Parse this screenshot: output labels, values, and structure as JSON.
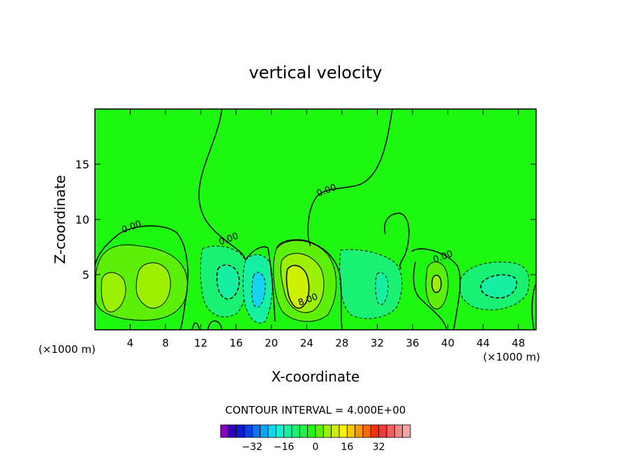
{
  "chart_data": {
    "type": "heatmap",
    "title": "vertical velocity",
    "xlabel": "X-coordinate",
    "ylabel": "Z-coordinate",
    "x_unit_left": "(×1000 m)",
    "x_unit_right": "(×1000 m)",
    "xlim": [
      0,
      50
    ],
    "ylim": [
      0,
      20
    ],
    "x_ticks": [
      4,
      8,
      12,
      16,
      20,
      24,
      28,
      32,
      36,
      40,
      44,
      48
    ],
    "y_ticks": [
      5,
      10,
      15
    ],
    "contour_interval_text": "CONTOUR INTERVAL = 4.000E+00",
    "contour_interval": 4,
    "contour_labels": [
      {
        "text": "0.00",
        "x": 4.2,
        "y": 9.2
      },
      {
        "text": "0.00",
        "x": 15.2,
        "y": 8.1
      },
      {
        "text": "0.00",
        "x": 26.3,
        "y": 12.5
      },
      {
        "text": "0.00",
        "x": 39.5,
        "y": 6.5
      },
      {
        "text": "8.00",
        "x": 24.2,
        "y": 2.6
      }
    ],
    "cells": [
      {
        "x": 3,
        "z": 3.5,
        "value": 8
      },
      {
        "x": 6.5,
        "z": 4,
        "value": 8
      },
      {
        "x": 15,
        "z": 4.5,
        "value": -8
      },
      {
        "x": 18.5,
        "z": 3.5,
        "value": -12
      },
      {
        "x": 23.5,
        "z": 4,
        "value": 16
      },
      {
        "x": 31,
        "z": 4.5,
        "value": -4
      },
      {
        "x": 38.5,
        "z": 4.5,
        "value": 8
      },
      {
        "x": 46,
        "z": 4.5,
        "value": -8
      }
    ],
    "colorbar": {
      "tick_labels": [
        "−32",
        "−16",
        "0",
        "16",
        "32"
      ],
      "tick_values": [
        -32,
        -16,
        0,
        16,
        32
      ],
      "colors": [
        "#8800bb",
        "#2a00b8",
        "#0d1ad0",
        "#0a40e6",
        "#0c72ee",
        "#10a4f0",
        "#14d4f0",
        "#14f0d2",
        "#16f0a2",
        "#1af072",
        "#22f042",
        "#1ef810",
        "#5cf008",
        "#9cf004",
        "#ccf000",
        "#f8f000",
        "#f8c800",
        "#f89800",
        "#f86800",
        "#f83000",
        "#f03a3a",
        "#f06060",
        "#f08888",
        "#f4a6a6"
      ]
    },
    "grid": false
  }
}
